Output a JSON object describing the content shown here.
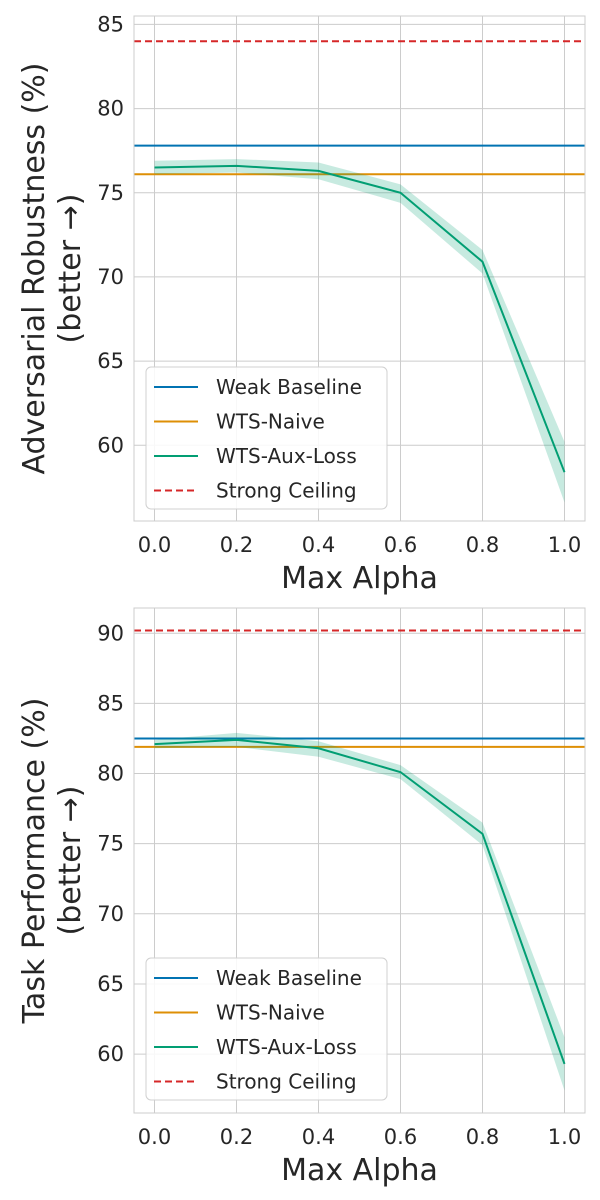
{
  "chart_data": [
    {
      "type": "line",
      "xlabel": "Max Alpha",
      "ylabel": "Adversarial Robustness (%)",
      "ylabel_line2": "(better →)",
      "xlim": [
        -0.05,
        1.05
      ],
      "ylim": [
        55.5,
        85.5
      ],
      "xticks": [
        "0.0",
        "0.2",
        "0.4",
        "0.6",
        "0.8",
        "1.0"
      ],
      "yticks": [
        "60",
        "65",
        "70",
        "75",
        "80",
        "85"
      ],
      "series": [
        {
          "name": "Weak Baseline",
          "color": "#0173b2",
          "style": "solid",
          "kind": "hline",
          "value": 77.8
        },
        {
          "name": "WTS-Naive",
          "color": "#de8f05",
          "style": "solid",
          "kind": "hline",
          "value": 76.1
        },
        {
          "name": "WTS-Aux-Loss",
          "color": "#029e73",
          "style": "solid",
          "kind": "line",
          "x": [
            0.0,
            0.2,
            0.4,
            0.6,
            0.8,
            1.0
          ],
          "values": [
            76.5,
            76.6,
            76.3,
            75.0,
            70.9,
            58.4
          ],
          "lower": [
            76.1,
            76.2,
            75.8,
            74.4,
            70.2,
            56.6
          ],
          "upper": [
            76.9,
            77.0,
            76.8,
            75.5,
            71.6,
            60.2
          ]
        },
        {
          "name": "Strong Ceiling",
          "color": "#d62728",
          "style": "dashed",
          "kind": "hline",
          "value": 84.0
        }
      ],
      "legend": "lower-left"
    },
    {
      "type": "line",
      "xlabel": "Max Alpha",
      "ylabel": "Task Performance (%)",
      "ylabel_line2": "(better →)",
      "xlim": [
        -0.05,
        1.05
      ],
      "ylim": [
        55.8,
        91.8
      ],
      "xticks": [
        "0.0",
        "0.2",
        "0.4",
        "0.6",
        "0.8",
        "1.0"
      ],
      "yticks": [
        "60",
        "65",
        "70",
        "75",
        "80",
        "85",
        "90"
      ],
      "series": [
        {
          "name": "Weak Baseline",
          "color": "#0173b2",
          "style": "solid",
          "kind": "hline",
          "value": 82.5
        },
        {
          "name": "WTS-Naive",
          "color": "#de8f05",
          "style": "solid",
          "kind": "hline",
          "value": 81.9
        },
        {
          "name": "WTS-Aux-Loss",
          "color": "#029e73",
          "style": "solid",
          "kind": "line",
          "x": [
            0.0,
            0.2,
            0.4,
            0.6,
            0.8,
            1.0
          ],
          "values": [
            82.1,
            82.4,
            81.8,
            80.1,
            75.7,
            59.3
          ],
          "lower": [
            81.8,
            81.9,
            81.2,
            79.6,
            74.9,
            57.4
          ],
          "upper": [
            82.4,
            82.9,
            82.3,
            80.6,
            76.5,
            61.2
          ]
        },
        {
          "name": "Strong Ceiling",
          "color": "#d62728",
          "style": "dashed",
          "kind": "hline",
          "value": 90.2
        }
      ],
      "legend": "lower-left"
    }
  ]
}
